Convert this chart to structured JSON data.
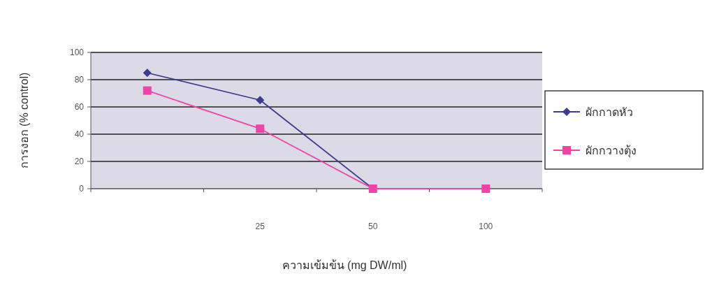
{
  "chart_data": {
    "type": "line",
    "xlabel": "ความเข้มข้น (mg DW/ml)",
    "ylabel": "การงอก (% control)",
    "categories": [
      null,
      "25",
      "50",
      "100"
    ],
    "series": [
      {
        "name": "ผักกาดหัว",
        "color": "#3b3b8f",
        "marker": "diamond",
        "values": [
          85,
          65,
          0,
          null
        ]
      },
      {
        "name": "ผักกวางตุ้ง",
        "color": "#ee44a8",
        "marker": "square",
        "values": [
          72,
          44,
          0,
          0
        ]
      }
    ],
    "ylim": [
      0,
      100
    ],
    "yticks": [
      0,
      20,
      40,
      60,
      80,
      100
    ],
    "grid": "y",
    "legend": "right"
  }
}
